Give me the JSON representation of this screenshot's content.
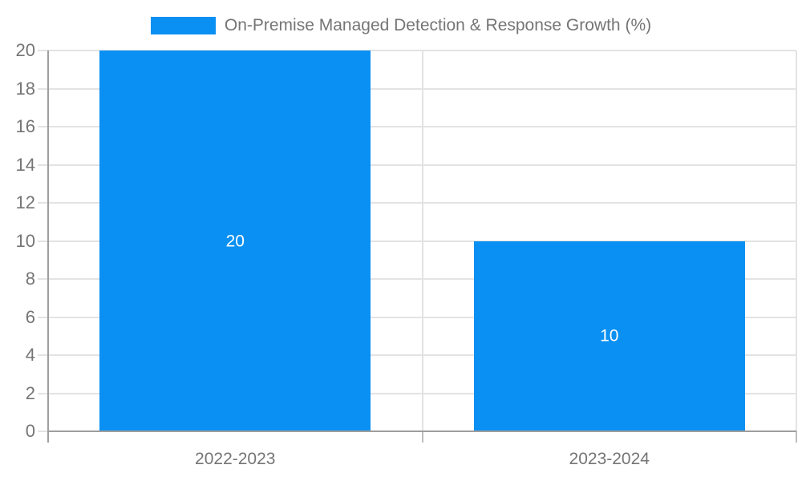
{
  "chart_data": {
    "type": "bar",
    "title": "",
    "xlabel": "",
    "ylabel": "",
    "categories": [
      "2022-2023",
      "2023-2024"
    ],
    "values": [
      20,
      10
    ],
    "bar_value_labels": [
      "20",
      "10"
    ],
    "series_name": "On-Premise Managed Detection & Response Growth (%)",
    "ylim": [
      0,
      20
    ],
    "ytick_step": 2,
    "yticks": [
      0,
      2,
      4,
      6,
      8,
      10,
      12,
      14,
      16,
      18,
      20
    ],
    "grid": true,
    "legend_position": "top"
  },
  "legend": {
    "label": "On-Premise Managed Detection & Response Growth (%)"
  },
  "colors": {
    "bar": "#0a90f2",
    "grid": "#e3e3e3",
    "axis": "#9e9e9e",
    "bottom_tick": "#bdbdbd",
    "tick_label": "#757575",
    "x_label": "#757575",
    "legend_text": "#757575",
    "bar_label": "#ffffff",
    "background": "#ffffff"
  }
}
